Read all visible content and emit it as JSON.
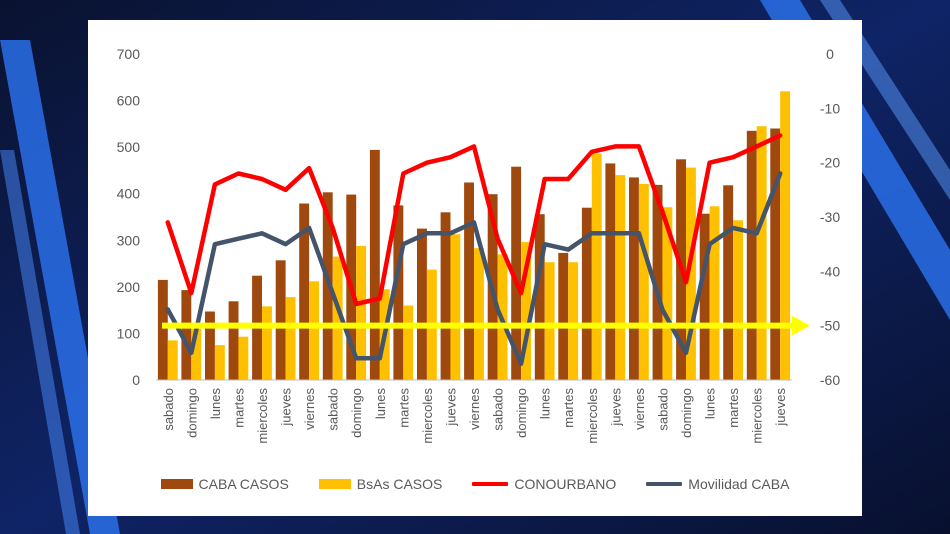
{
  "chart_data": {
    "type": "bar",
    "categories": [
      "sabado",
      "domingo",
      "lunes",
      "martes",
      "miercoles",
      "jueves",
      "viernes",
      "sabado",
      "domingo",
      "lunes",
      "martes",
      "miercoles",
      "jueves",
      "viernes",
      "sabado",
      "domingo",
      "lunes",
      "martes",
      "miercoles",
      "jueves",
      "viernes",
      "sabado",
      "domingo",
      "lunes",
      "martes",
      "miercoles",
      "jueves"
    ],
    "x_all": [
      "sabado",
      "domingo",
      "lunes",
      "martes",
      "miercoles",
      "jueves",
      "viernes",
      "sabado",
      "domingo",
      "lunes",
      "martes",
      "miercoles",
      "jueves",
      "viernes",
      "sabado",
      "domingo",
      "lunes",
      "martes",
      "miercoles",
      "jueves",
      "viernes",
      "sabado",
      "domingo",
      "lunes",
      "martes",
      "miercoles",
      "jueves"
    ],
    "series": [
      {
        "name": "CABA CASOS",
        "axis": "left",
        "kind": "bar",
        "color": "#A0490F",
        "values": [
          215,
          193,
          147,
          169,
          224,
          257,
          379,
          403,
          398,
          494,
          375,
          325,
          360,
          424,
          399,
          458,
          356,
          273,
          370,
          465,
          435,
          419,
          474,
          357,
          418,
          535,
          540
        ]
      },
      {
        "name": "BsAs CASOS",
        "axis": "left",
        "kind": "bar",
        "color": "#FFC000",
        "values": [
          85,
          110,
          75,
          93,
          158,
          178,
          212,
          265,
          288,
          195,
          160,
          237,
          313,
          283,
          270,
          296,
          253,
          253,
          486,
          440,
          421,
          371,
          456,
          373,
          343,
          545,
          620
        ]
      },
      {
        "name": "CONOURBANO",
        "axis": "right",
        "kind": "line",
        "color": "#FF0000",
        "values": [
          -31,
          -44,
          -24,
          -22,
          -23,
          -25,
          -21,
          -32,
          -46,
          -45,
          -22,
          -20,
          -19,
          -17,
          -34,
          -44,
          -23,
          -23,
          -18,
          -17,
          -17,
          -29,
          -42,
          -20,
          -19,
          -17,
          -15
        ]
      },
      {
        "name": "Movilidad CABA",
        "axis": "right",
        "kind": "line",
        "color": "#44546A",
        "values": [
          -47,
          -55,
          -35,
          -34,
          -33,
          -35,
          -32,
          -44,
          -56,
          -56,
          -35,
          -33,
          -33,
          -31,
          -47,
          -57,
          -35,
          -36,
          -33,
          -33,
          -33,
          -47,
          -55,
          -35,
          -32,
          -33,
          -22
        ]
      }
    ],
    "yticks_left": [
      "0",
      "100",
      "200",
      "300",
      "400",
      "500",
      "600",
      "700"
    ],
    "yticks_right": [
      "0",
      "-10",
      "-20",
      "-30",
      "-40",
      "-50",
      "-60"
    ],
    "ylim": [
      0,
      700
    ],
    "ylim_right": [
      -60,
      0
    ],
    "arrow_value_right": -50,
    "arrow_color": "#FFFF00",
    "legend": [
      "CABA CASOS",
      "BsAs CASOS",
      "CONOURBANO",
      "Movilidad CABA"
    ],
    "legend_position": "bottom",
    "grid": false
  }
}
